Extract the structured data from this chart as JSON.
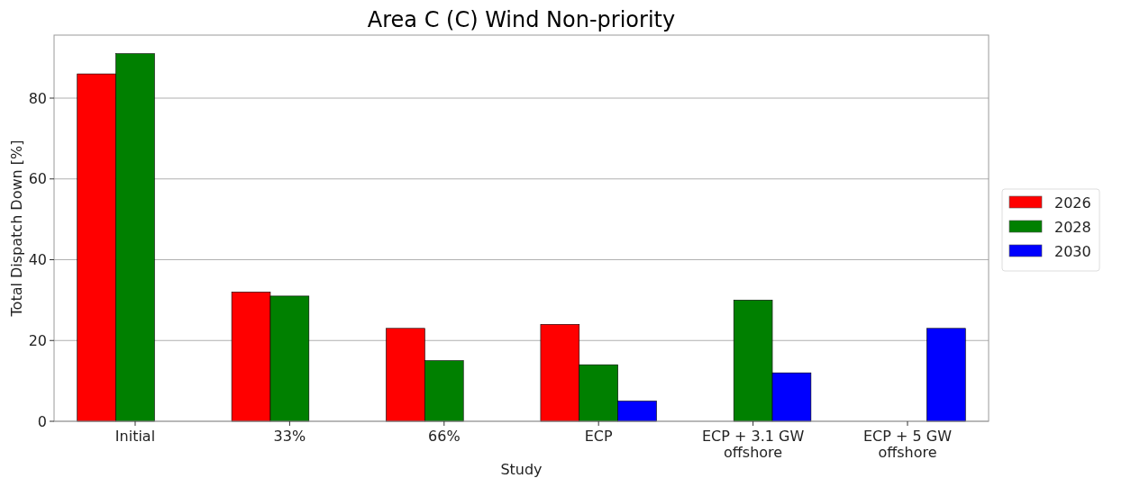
{
  "chart_data": {
    "type": "bar",
    "title": "Area C (C) Wind Non-priority",
    "xlabel": "Study",
    "ylabel": "Total Dispatch Down [%]",
    "categories": [
      "Initial",
      "33%",
      "66%",
      "ECP",
      "ECP + 3.1 GW offshore",
      "ECP + 5 GW offshore"
    ],
    "series": [
      {
        "name": "2026",
        "color": "#ff0000",
        "values": [
          86,
          32,
          23,
          24,
          null,
          null
        ]
      },
      {
        "name": "2028",
        "color": "#008000",
        "values": [
          91,
          31,
          15,
          14,
          30,
          null
        ]
      },
      {
        "name": "2030",
        "color": "#0000ff",
        "values": [
          null,
          null,
          null,
          5,
          12,
          23
        ]
      }
    ],
    "ylim": [
      0,
      95.6
    ],
    "yticks": [
      0,
      20,
      40,
      60,
      80
    ],
    "grid": "y",
    "legend": "right"
  }
}
